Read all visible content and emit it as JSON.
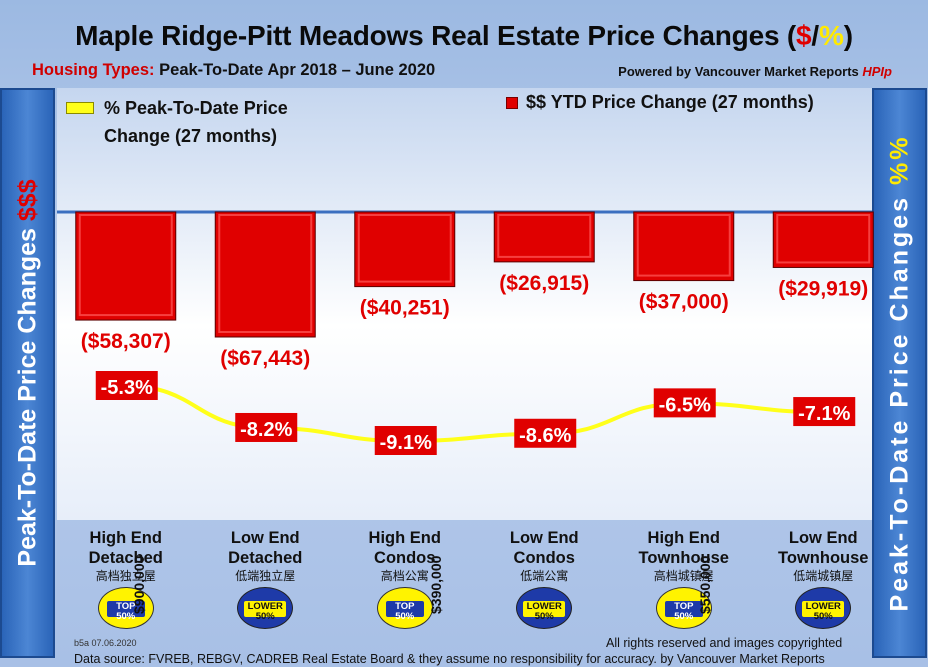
{
  "title": {
    "main": "Maple Ridge-Pitt Meadows Real Estate Price Changes (",
    "dollar": "$",
    "slash": "/",
    "pct": "%",
    "close": ")"
  },
  "subtitle": {
    "housing_types": "Housing Types:",
    "period": " Peak-To-Date Apr 2018 – June 2020"
  },
  "powered": {
    "text": "Powered by Vancouver Market Reports ",
    "brand": "HPIp"
  },
  "side_labels": {
    "left_text": "Peak-To-Date Price Changes ",
    "left_accent": "$$$",
    "right_text": "Peak-To-Date  Price  Changes  ",
    "right_accent": "%%"
  },
  "legend": {
    "pct_line1": "% Peak-To-Date Price",
    "pct_line2": "Change (27 months)",
    "usd": "$$ YTD Price Change (27 months)"
  },
  "categories": [
    {
      "line1": "High End",
      "line2": "Detached",
      "zh": "高档独立屋",
      "badge": "top",
      "badge_text1": "TOP",
      "badge_text2": "50%"
    },
    {
      "line1": "Low End",
      "line2": "Detached",
      "zh": "低端独立屋",
      "badge": "lower",
      "badge_text1": "LOWER",
      "badge_text2": "50%"
    },
    {
      "line1": "High End",
      "line2": "Condos",
      "zh": "高档公寓",
      "badge": "top",
      "badge_text1": "TOP",
      "badge_text2": "50%"
    },
    {
      "line1": "Low End",
      "line2": "Condos",
      "zh": "低端公寓",
      "badge": "lower",
      "badge_text1": "LOWER",
      "badge_text2": "50%"
    },
    {
      "line1": "High End",
      "line2": "Townhouse",
      "zh": "高档城镇屋",
      "badge": "top",
      "badge_text1": "TOP",
      "badge_text2": "50%"
    },
    {
      "line1": "Low End",
      "line2": "Townhouse",
      "zh": "低端城镇屋",
      "badge": "lower",
      "badge_text1": "LOWER",
      "badge_text2": "50%"
    }
  ],
  "dividers": [
    "$900,000",
    "$390,000",
    "$550,000"
  ],
  "footer": {
    "code": "b5a 07.06.2020",
    "rights": "All rights reserved and  images copyrighted",
    "source": "Data source: FVREB, REBGV, CADREB Real Estate Board & they assume no responsibility for accuracy. by Vancouver Market Reports"
  },
  "colors": {
    "bar": "#e00000",
    "line": "#ffff1a",
    "label_bg": "#e00000"
  },
  "chart_data": {
    "type": "bar",
    "categories": [
      "High End Detached",
      "Low End Detached",
      "High End Condos",
      "Low End Condos",
      "High End Townhouse",
      "Low End Townhouse"
    ],
    "series": [
      {
        "name": "$$ YTD Price Change (27 months)",
        "type": "bar",
        "values": [
          -58307,
          -67443,
          -40251,
          -26915,
          -37000,
          -29919
        ],
        "labels": [
          "($58,307)",
          "($67,443)",
          "($40,251)",
          "($26,915)",
          "($37,000)",
          "($29,919)"
        ]
      },
      {
        "name": "% Peak-To-Date Price Change (27 months)",
        "type": "line",
        "values": [
          -5.3,
          -8.2,
          -9.1,
          -8.6,
          -6.5,
          -7.1
        ],
        "labels": [
          "-5.3%",
          "-8.2%",
          "-9.1%",
          "-8.6%",
          "-6.5%",
          "-7.1%"
        ]
      }
    ]
  }
}
